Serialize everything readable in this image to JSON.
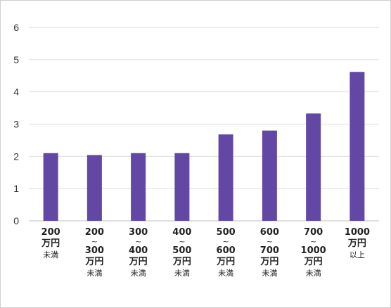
{
  "chart_data": {
    "type": "bar",
    "ylim": [
      0,
      6
    ],
    "yticks": [
      "0",
      "1",
      "2",
      "3",
      "4",
      "5",
      "6"
    ],
    "grid": true,
    "bar_color": "#6247a5",
    "categories": [
      [
        "200",
        "万円",
        "未満"
      ],
      [
        "200",
        "~",
        "300",
        "万円",
        "未満"
      ],
      [
        "300",
        "~",
        "400",
        "万円",
        "未満"
      ],
      [
        "400",
        "~",
        "500",
        "万円",
        "未満"
      ],
      [
        "500",
        "~",
        "600",
        "万円",
        "未満"
      ],
      [
        "600",
        "~",
        "700",
        "万円",
        "未満"
      ],
      [
        "700",
        "~",
        "1000",
        "万円",
        "未満"
      ],
      [
        "1000",
        "万円",
        "以上"
      ]
    ],
    "values": [
      2.1,
      2.04,
      2.1,
      2.1,
      2.68,
      2.8,
      3.33,
      4.62
    ]
  }
}
